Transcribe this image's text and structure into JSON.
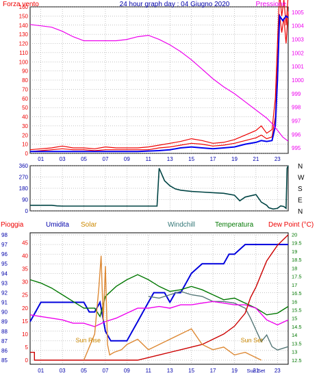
{
  "title": "24 hour graph day : 04 Giugno 2020",
  "colors": {
    "frame": "#000000",
    "grid": "#8a8a8a",
    "wind": "#ee0000",
    "gust": "#ee0000",
    "avg_wind": "#0000ee",
    "pressure": "#ee00ee",
    "direction": "#004444",
    "humidity": "#0000dd",
    "temperature": "#007700",
    "windchill": "#557777",
    "dewpoint": "#ee00ee",
    "rain": "#cc0000",
    "solar": "#dd8833",
    "label_red": "#ee0000",
    "label_blue": "#0000aa",
    "label_green": "#007700",
    "label_orange": "#cc8800",
    "label_teal": "#337777"
  },
  "chart_data": [
    {
      "type": "line",
      "panel": "wind-pressure",
      "title": "24 hour graph day : 04 Giugno 2020",
      "left_axis_label": "Forza vento",
      "right_axis_label": "Pressione",
      "x_ticks": [
        "01",
        "03",
        "05",
        "07",
        "09",
        "11",
        "13",
        "15",
        "17",
        "19",
        "21",
        "23"
      ],
      "left_ticks": [
        0,
        10,
        20,
        30,
        40,
        50,
        60,
        70,
        80,
        90,
        100,
        110,
        120,
        130,
        140,
        150,
        160
      ],
      "right_ticks": [
        995,
        996,
        997,
        998,
        999,
        1000,
        1001,
        1002,
        1003,
        1004,
        1005
      ],
      "xlim": [
        0,
        24
      ],
      "left_ylim": [
        0,
        160
      ],
      "right_ylim": [
        994.6,
        1005.4
      ],
      "series": [
        {
          "key": "gust",
          "axis": "left",
          "x": [
            0,
            1,
            2,
            3,
            4,
            5,
            6,
            7,
            8,
            9,
            10,
            11,
            12,
            13,
            14,
            15,
            16,
            17,
            18,
            19,
            20,
            21,
            21.5,
            22,
            22.5,
            22.8,
            23,
            23.2,
            23.4,
            23.6,
            23.8,
            24
          ],
          "values": [
            4,
            5,
            6,
            8,
            6,
            6,
            5,
            7,
            6,
            6,
            6,
            7,
            9,
            11,
            13,
            16,
            14,
            11,
            12,
            15,
            20,
            25,
            30,
            22,
            26,
            60,
            120,
            175,
            150,
            168,
            140,
            172
          ]
        },
        {
          "key": "wind",
          "axis": "left",
          "x": [
            0,
            1,
            2,
            3,
            4,
            5,
            6,
            7,
            8,
            9,
            10,
            11,
            12,
            13,
            14,
            15,
            16,
            17,
            18,
            19,
            20,
            21,
            21.5,
            22,
            22.5,
            22.8,
            23,
            23.2,
            23.4,
            23.6,
            23.8,
            24
          ],
          "values": [
            2,
            3,
            4,
            5,
            4,
            4,
            3,
            4,
            4,
            4,
            4,
            4,
            6,
            7,
            9,
            11,
            10,
            8,
            9,
            11,
            14,
            17,
            20,
            16,
            18,
            40,
            95,
            152,
            132,
            148,
            120,
            155
          ]
        },
        {
          "key": "avg_wind",
          "axis": "left",
          "x": [
            0,
            2,
            4,
            6,
            8,
            10,
            12,
            13,
            14,
            15,
            16,
            17,
            18,
            19,
            20,
            21,
            21.5,
            22,
            22.5,
            22.8,
            23,
            23.2,
            23.5,
            23.8,
            24
          ],
          "values": [
            2,
            2,
            2,
            2,
            2,
            2,
            3,
            4,
            6,
            7,
            6,
            5,
            6,
            7,
            10,
            12,
            14,
            13,
            14,
            30,
            80,
            150,
            145,
            150,
            148
          ]
        },
        {
          "key": "pressure",
          "axis": "right",
          "x": [
            0,
            1,
            2,
            3,
            4,
            5,
            6,
            7,
            8,
            9,
            10,
            11,
            12,
            13,
            14,
            15,
            16,
            17,
            18,
            19,
            20,
            21,
            22,
            22.5,
            23,
            23.5,
            24
          ],
          "values": [
            1004.1,
            1004.0,
            1003.9,
            1003.6,
            1003.2,
            1002.9,
            1002.9,
            1002.9,
            1002.9,
            1003.0,
            1003.2,
            1003.3,
            1003.0,
            1002.6,
            1002.1,
            1001.5,
            1000.8,
            1000.1,
            999.5,
            999.0,
            998.4,
            997.8,
            997.2,
            996.8,
            996.3,
            995.8,
            995.5
          ]
        }
      ]
    },
    {
      "type": "line",
      "panel": "wind-direction",
      "left_ticks": [
        0,
        90,
        180,
        270,
        360
      ],
      "right_labels": [
        "N",
        "W",
        "S",
        "E",
        "N"
      ],
      "xlim": [
        0,
        24
      ],
      "ylim": [
        0,
        360
      ],
      "series": [
        {
          "key": "direction",
          "x": [
            0,
            1,
            2,
            2.5,
            3,
            4,
            5,
            6,
            7,
            8,
            9,
            10,
            11,
            11.8,
            12,
            12.5,
            13,
            13.5,
            14,
            15,
            16,
            17,
            18,
            19,
            19.5,
            20,
            21,
            21.5,
            22,
            22.2,
            22.6,
            23,
            23.3,
            23.6,
            23.8,
            23.9,
            24
          ],
          "values": [
            45,
            45,
            45,
            40,
            38,
            38,
            38,
            38,
            38,
            38,
            38,
            38,
            38,
            38,
            340,
            240,
            200,
            175,
            165,
            155,
            150,
            145,
            140,
            125,
            80,
            110,
            130,
            70,
            45,
            25,
            15,
            20,
            40,
            35,
            20,
            340,
            360
          ]
        }
      ]
    },
    {
      "type": "line",
      "panel": "weather",
      "labels": {
        "rain": "Pioggia",
        "humidity": "Umidita",
        "solar": "Solar",
        "windchill": "Windchill",
        "temperature": "Temperatura",
        "dewpoint": "Dew Point (°C)"
      },
      "x_ticks": [
        "01",
        "03",
        "05",
        "07",
        "09",
        "11",
        "13",
        "15",
        "17",
        "19",
        "21",
        "23"
      ],
      "left_ticks": [
        85,
        86,
        87,
        88,
        89,
        90,
        91,
        92,
        93,
        94,
        95,
        96,
        97,
        98
      ],
      "left2_ticks": [
        0,
        5,
        10,
        15,
        20,
        25,
        30,
        35,
        40,
        45
      ],
      "right_ticks": [
        12.5,
        13,
        13.5,
        14,
        14.5,
        15,
        15.5,
        16,
        16.5,
        17,
        17.5,
        18,
        18.5,
        19,
        19.5,
        20
      ],
      "annotations": [
        "Sun Rise",
        "Sun Set",
        "Sun Set"
      ],
      "xlim": [
        0,
        24
      ],
      "humidity_ylim": [
        85,
        98
      ],
      "temp_ylim": [
        12.25,
        20.1
      ],
      "series": [
        {
          "key": "humidity",
          "axis": "humidity",
          "x": [
            0,
            0.5,
            1,
            2,
            3,
            4,
            5,
            5.5,
            6,
            6.5,
            7,
            7.5,
            8,
            8.5,
            9,
            9.5,
            10,
            10.5,
            11,
            11.5,
            12,
            12.5,
            13,
            13.5,
            14,
            14.5,
            15,
            16,
            17,
            18,
            18.5,
            19,
            20,
            21,
            22,
            23,
            24
          ],
          "values": [
            89,
            90,
            91,
            91,
            91,
            91,
            91,
            90,
            90,
            91,
            88,
            87,
            87,
            87,
            87,
            88,
            89,
            90,
            91,
            92,
            92,
            92,
            91,
            92,
            92,
            93,
            94,
            95,
            95,
            95,
            96,
            96,
            97,
            97,
            97,
            97,
            97
          ]
        },
        {
          "key": "temperature",
          "axis": "temp",
          "x": [
            0,
            1,
            2,
            3,
            4,
            5,
            6,
            6.5,
            7,
            8,
            9,
            10,
            11,
            12,
            13,
            14,
            15,
            16,
            17,
            18,
            19,
            20,
            21,
            22,
            23,
            24
          ],
          "values": [
            17.3,
            17.1,
            16.8,
            16.4,
            16.0,
            15.6,
            15.6,
            15.1,
            16.3,
            16.9,
            17.3,
            17.6,
            17.3,
            16.9,
            16.6,
            16.7,
            16.9,
            16.7,
            16.4,
            16.1,
            16.2,
            15.9,
            15.6,
            15.2,
            15.3,
            15.7
          ]
        },
        {
          "key": "windchill",
          "axis": "temp",
          "x": [
            11,
            12,
            13,
            14,
            15,
            16,
            17,
            18,
            19,
            20,
            20.5,
            21,
            21.5,
            22,
            22.5,
            23,
            24
          ],
          "values": [
            16.3,
            16.2,
            16.4,
            16.6,
            16.4,
            16.3,
            16.0,
            16.0,
            15.9,
            15.6,
            15.0,
            14.3,
            13.6,
            14.0,
            13.3,
            13.1,
            13.3
          ]
        },
        {
          "key": "dewpoint",
          "axis": "temp",
          "x": [
            0,
            1,
            2,
            3,
            4,
            5,
            6,
            7,
            8,
            9,
            10,
            11,
            12,
            13,
            14,
            15,
            16,
            17,
            18,
            19,
            20,
            21,
            22,
            23,
            24
          ],
          "values": [
            15.2,
            15.1,
            15.0,
            14.9,
            14.7,
            14.7,
            14.5,
            14.8,
            15.0,
            15.3,
            15.6,
            15.6,
            15.7,
            15.6,
            15.8,
            15.8,
            15.9,
            16.0,
            15.9,
            15.8,
            15.8,
            15.6,
            14.9,
            14.6,
            14.9
          ]
        },
        {
          "key": "rain",
          "axis": "rain",
          "x": [
            0,
            0.4,
            0.4,
            10,
            12,
            14,
            16,
            18,
            19,
            20,
            20.5,
            21,
            21.5,
            22,
            22.5,
            23,
            23.5,
            24
          ],
          "values": [
            3,
            3,
            0,
            0,
            2,
            4,
            6,
            10,
            13,
            18,
            24,
            28,
            33,
            38,
            41,
            44,
            46,
            48
          ]
        },
        {
          "key": "solar",
          "axis": "rain",
          "x": [
            5,
            5.5,
            6,
            6.4,
            6.6,
            6.8,
            7,
            7.2,
            7.4,
            7.8,
            8.5,
            9,
            10,
            11,
            12,
            13,
            14,
            15,
            16,
            17,
            18,
            19,
            20,
            21,
            21.5
          ],
          "values": [
            0,
            5,
            10,
            28,
            40,
            15,
            36,
            6,
            2,
            3,
            4,
            6,
            8,
            4,
            6,
            8,
            10,
            12,
            6,
            4,
            5,
            2,
            3,
            1,
            0
          ]
        }
      ]
    }
  ]
}
